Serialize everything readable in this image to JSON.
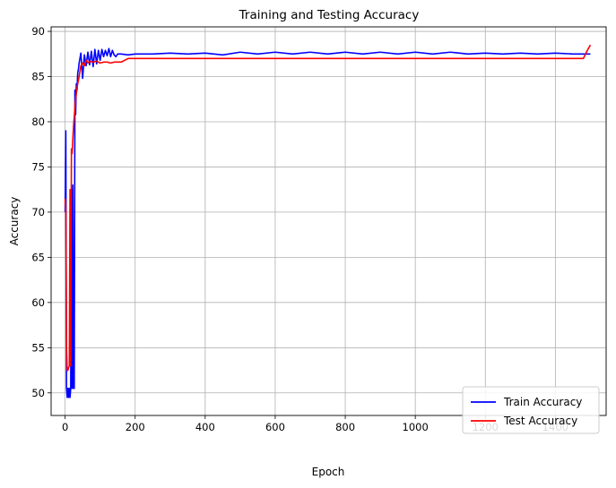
{
  "chart_data": {
    "type": "line",
    "title": "Training and Testing Accuracy",
    "xlabel": "Epoch",
    "ylabel": "Accuracy",
    "xlim": [
      -40,
      1545
    ],
    "ylim": [
      47.5,
      90.5
    ],
    "xticks": [
      0,
      200,
      400,
      600,
      800,
      1000,
      1200,
      1400
    ],
    "yticks": [
      50,
      55,
      60,
      65,
      70,
      75,
      80,
      85,
      90
    ],
    "grid": true,
    "legend_position": "bottom-right",
    "series": [
      {
        "name": "Train Accuracy",
        "color": "#0000ff",
        "x": [
          0,
          2,
          4,
          6,
          8,
          10,
          12,
          14,
          16,
          18,
          20,
          22,
          24,
          26,
          28,
          30,
          32,
          34,
          36,
          38,
          40,
          45,
          50,
          55,
          60,
          65,
          70,
          75,
          80,
          85,
          90,
          95,
          100,
          105,
          110,
          115,
          120,
          125,
          130,
          135,
          140,
          145,
          150,
          160,
          180,
          200,
          250,
          300,
          350,
          400,
          450,
          500,
          550,
          600,
          650,
          700,
          750,
          800,
          850,
          900,
          950,
          1000,
          1050,
          1100,
          1150,
          1200,
          1250,
          1300,
          1350,
          1400,
          1450,
          1500
        ],
        "y": [
          70,
          79,
          50.5,
          49.5,
          50.5,
          49.5,
          50.5,
          49.5,
          50.5,
          72.5,
          50.5,
          73,
          50.5,
          50.5,
          83.5,
          80.8,
          84.2,
          83.5,
          85.4,
          85.8,
          86.5,
          87.6,
          84.8,
          87.4,
          86.2,
          87.7,
          86.3,
          87.8,
          86.1,
          88,
          86.4,
          87.9,
          86.8,
          88,
          87.2,
          87.9,
          87.3,
          88.1,
          87.2,
          87.9,
          87.4,
          87.2,
          87.5,
          87.5,
          87.4,
          87.5,
          87.5,
          87.6,
          87.5,
          87.6,
          87.4,
          87.7,
          87.5,
          87.7,
          87.5,
          87.7,
          87.5,
          87.7,
          87.5,
          87.7,
          87.5,
          87.7,
          87.5,
          87.7,
          87.5,
          87.6,
          87.5,
          87.6,
          87.5,
          87.6,
          87.5,
          87.5
        ]
      },
      {
        "name": "Test Accuracy",
        "color": "#ff0000",
        "x": [
          0,
          2,
          4,
          6,
          8,
          10,
          12,
          14,
          16,
          18,
          20,
          22,
          24,
          26,
          28,
          30,
          35,
          40,
          45,
          50,
          55,
          60,
          65,
          70,
          80,
          90,
          100,
          110,
          120,
          130,
          140,
          150,
          160,
          180,
          200,
          300,
          400,
          500,
          600,
          700,
          800,
          900,
          1000,
          1100,
          1200,
          1300,
          1400,
          1480,
          1490,
          1500
        ],
        "y": [
          71.5,
          70,
          55,
          52.5,
          52.5,
          52.8,
          53,
          72.5,
          53,
          77,
          76.5,
          78,
          79.5,
          80.5,
          81.5,
          82.5,
          84,
          85,
          86.2,
          86.5,
          86.2,
          86.8,
          86.5,
          86.7,
          86.6,
          86.7,
          86.5,
          86.6,
          86.6,
          86.5,
          86.6,
          86.6,
          86.6,
          87,
          87,
          87,
          87,
          87,
          87,
          87,
          87,
          87,
          87,
          87,
          87,
          87,
          87,
          87,
          87.8,
          88.5
        ]
      }
    ]
  }
}
